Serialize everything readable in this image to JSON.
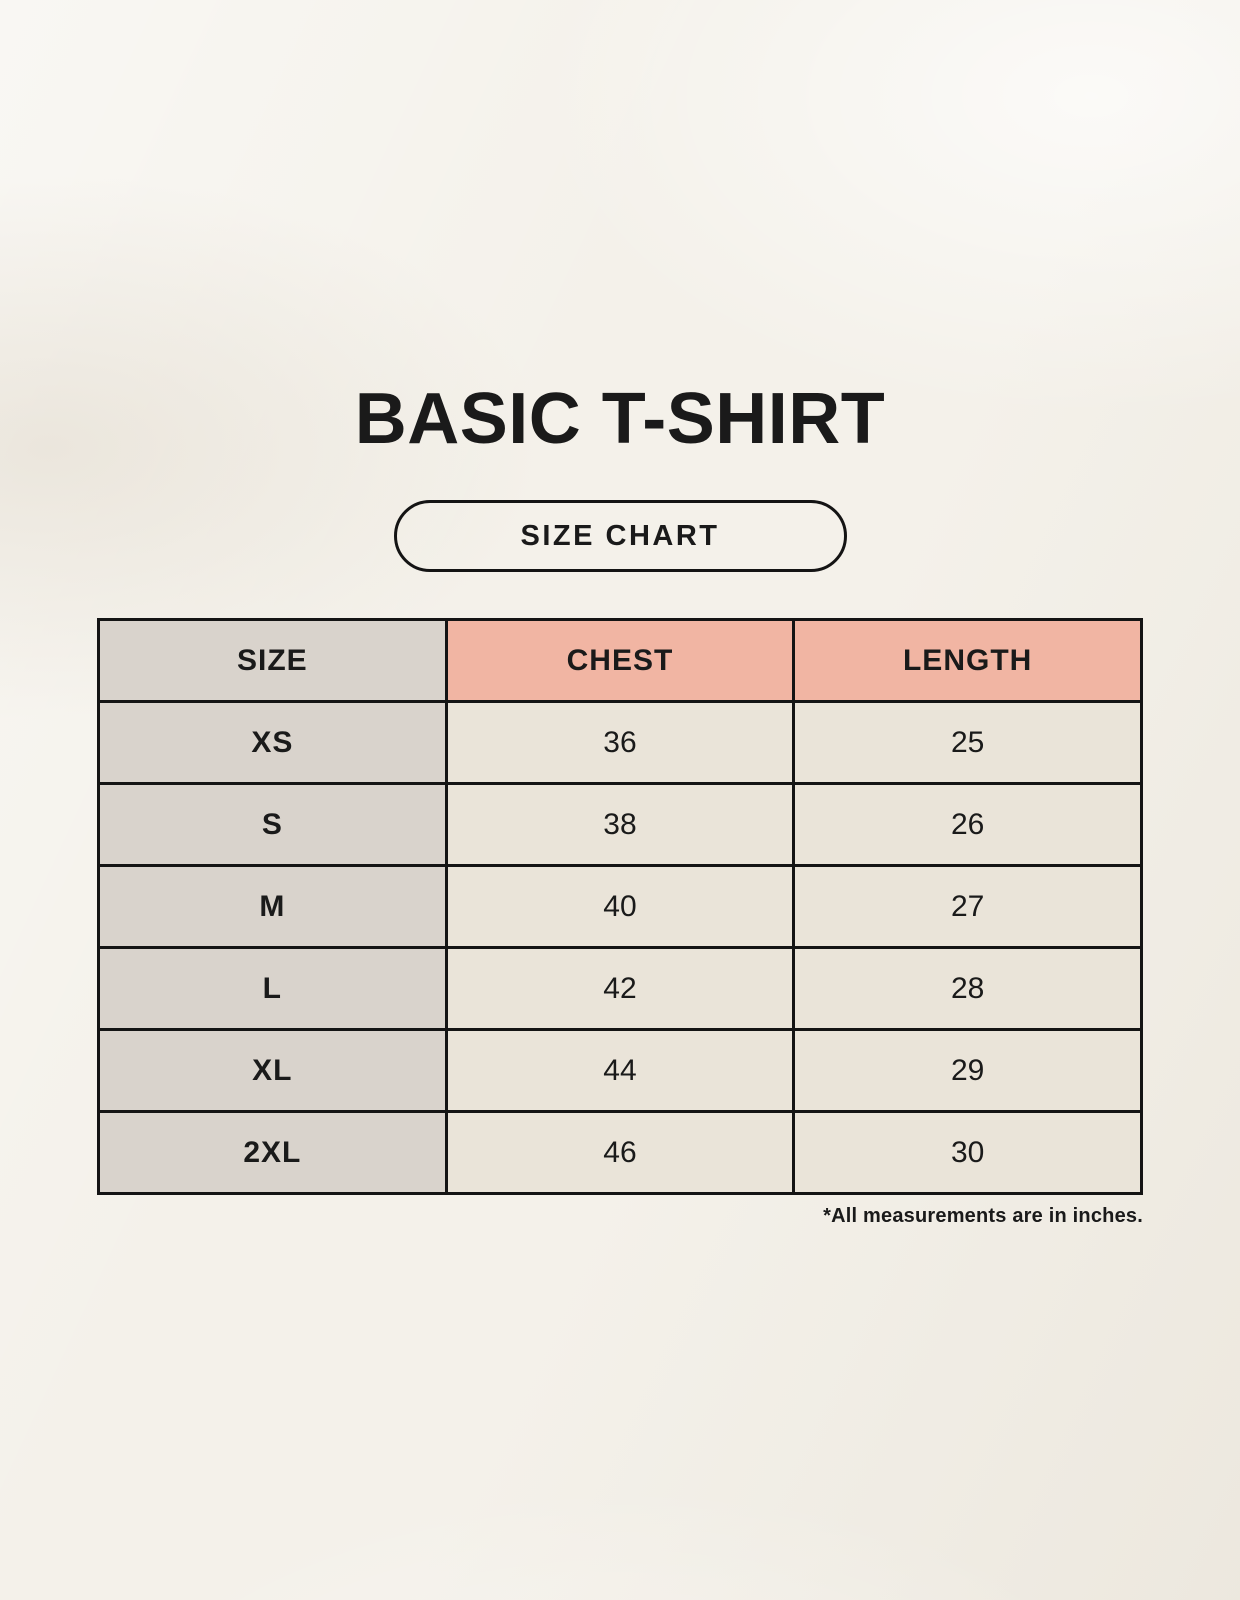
{
  "title": "BASIC T-SHIRT",
  "badge": {
    "label": "SIZE CHART"
  },
  "footnote": "*All measurements are in inches.",
  "colors": {
    "background": "#f4f1ea",
    "size_col_bg": "#d9d3cc",
    "accent_header_bg": "#f1b5a3",
    "cell_bg": "#eae4d9",
    "border": "#141414",
    "text": "#1a1a1a"
  },
  "chart_data": {
    "type": "table",
    "title": "BASIC T-SHIRT",
    "columns": [
      "SIZE",
      "CHEST",
      "LENGTH"
    ],
    "rows": [
      [
        "XS",
        "36",
        "25"
      ],
      [
        "S",
        "38",
        "26"
      ],
      [
        "M",
        "40",
        "27"
      ],
      [
        "L",
        "42",
        "28"
      ],
      [
        "XL",
        "44",
        "29"
      ],
      [
        "2XL",
        "46",
        "30"
      ]
    ]
  }
}
